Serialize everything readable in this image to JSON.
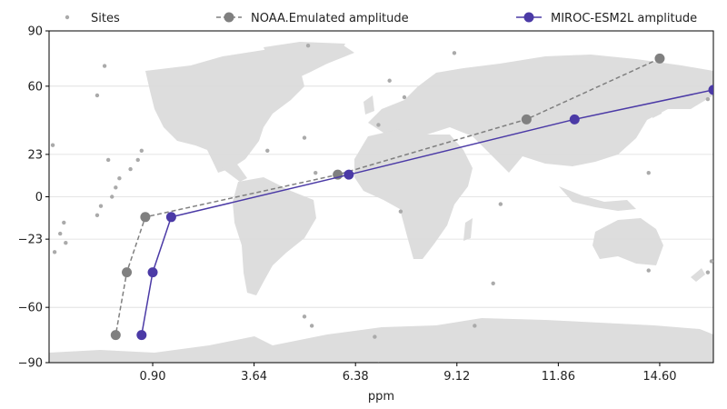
{
  "chart_data": {
    "type": "line",
    "xlabel": "ppm",
    "xlim": [
      -1.9,
      16.05
    ],
    "ylim": [
      -90,
      90
    ],
    "x_ticks": [
      {
        "value": 0.9,
        "label": "0.90"
      },
      {
        "value": 3.64,
        "label": "3.64"
      },
      {
        "value": 6.38,
        "label": "6.38"
      },
      {
        "value": 9.12,
        "label": "9.12"
      },
      {
        "value": 11.86,
        "label": "11.86"
      },
      {
        "value": 14.6,
        "label": "14.60"
      }
    ],
    "y_ticks": [
      {
        "value": -90,
        "label": "−90"
      },
      {
        "value": -60,
        "label": "−60"
      },
      {
        "value": -23,
        "label": "−23"
      },
      {
        "value": 0,
        "label": "0"
      },
      {
        "value": 23,
        "label": "23"
      },
      {
        "value": 60,
        "label": "60"
      },
      {
        "value": 90,
        "label": "90"
      }
    ],
    "grid": "horizontal",
    "legend_placement": "top",
    "background_map": "world-landmass",
    "series": [
      {
        "name": "Sites",
        "kind": "scatter",
        "color": "#aaaaaa",
        "points": [
          [
            -1.8,
            28
          ],
          [
            -1.75,
            -30
          ],
          [
            -1.6,
            -20
          ],
          [
            -1.5,
            -14
          ],
          [
            -1.45,
            -25
          ],
          [
            -0.6,
            55
          ],
          [
            -0.4,
            71
          ],
          [
            -0.3,
            20
          ],
          [
            -0.6,
            -10
          ],
          [
            -0.5,
            -5
          ],
          [
            -0.2,
            0
          ],
          [
            -0.1,
            5
          ],
          [
            0.0,
            10
          ],
          [
            0.3,
            15
          ],
          [
            0.5,
            20
          ],
          [
            0.6,
            25
          ],
          [
            4.0,
            25
          ],
          [
            5.0,
            32
          ],
          [
            5.1,
            82
          ],
          [
            5.3,
            13
          ],
          [
            5.0,
            -65
          ],
          [
            5.2,
            -70
          ],
          [
            7.3,
            63
          ],
          [
            7.0,
            39
          ],
          [
            7.7,
            54
          ],
          [
            7.6,
            -8
          ],
          [
            6.9,
            -76
          ],
          [
            7.0,
            -91
          ],
          [
            9.05,
            78
          ],
          [
            10.3,
            -4
          ],
          [
            10.1,
            -47
          ],
          [
            9.6,
            -70
          ],
          [
            14.3,
            13
          ],
          [
            14.3,
            -40
          ],
          [
            15.9,
            53
          ],
          [
            15.9,
            -41
          ],
          [
            16.0,
            -35
          ]
        ]
      },
      {
        "name": "NOAA.Emulated amplitude",
        "kind": "line",
        "color": "#808080",
        "dash": true,
        "points": [
          [
            14.6,
            75
          ],
          [
            11.0,
            42
          ],
          [
            5.9,
            12
          ],
          [
            0.7,
            -11
          ],
          [
            0.2,
            -41
          ],
          [
            -0.1,
            -75
          ]
        ]
      },
      {
        "name": "MIROC-ESM2L amplitude",
        "kind": "line",
        "color": "#4b3aa6",
        "dash": false,
        "points": [
          [
            16.05,
            58
          ],
          [
            12.3,
            42
          ],
          [
            6.2,
            12
          ],
          [
            1.4,
            -11
          ],
          [
            0.9,
            -41
          ],
          [
            0.6,
            -75
          ]
        ]
      }
    ]
  }
}
